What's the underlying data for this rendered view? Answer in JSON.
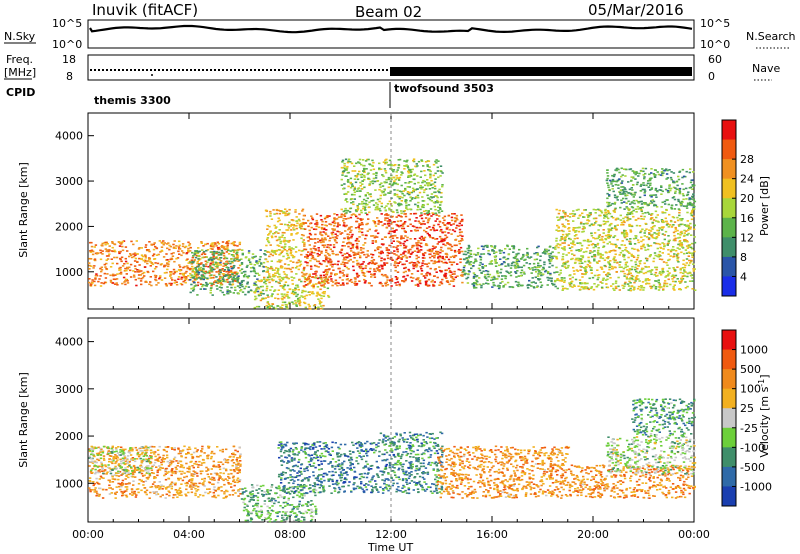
{
  "header": {
    "station": "Inuvik  (fitACF)",
    "beam": "Beam 02",
    "date": "05/Mar/2016"
  },
  "aux_panels": {
    "nsky_label": "N.Sky",
    "nsky_ticks": [
      "10^5",
      "10^0"
    ],
    "nsearch_label": "N.Search",
    "nsearch_ticks": [
      "10^5",
      "10^0"
    ],
    "freq_label_1": "Freq.",
    "freq_label_2": "[MHz]",
    "freq_ticks": [
      "18",
      "8"
    ],
    "nave_label": "Nave",
    "nave_ticks": [
      "60",
      "0"
    ],
    "cpid_label": "CPID",
    "cpid_segments": [
      {
        "name": "themis 3300",
        "start_hour": 0,
        "end_hour": 12
      },
      {
        "name": "twofsound 3503",
        "start_hour": 12,
        "end_hour": 24
      }
    ]
  },
  "chart_data": [
    {
      "type": "heatmap",
      "panel": "power",
      "ylabel": "Slant Range [km]",
      "xlabel": "Time UT",
      "xlim_hours": [
        0,
        24
      ],
      "ylim_km": [
        180,
        4500
      ],
      "yticks": [
        "1000",
        "2000",
        "3000",
        "4000"
      ],
      "xticks": [
        "00:00",
        "04:00",
        "08:00",
        "12:00",
        "16:00",
        "20:00",
        "00:00"
      ],
      "colorbar": {
        "label": "Power [dB]",
        "ticks": [
          "4",
          "8",
          "12",
          "16",
          "20",
          "24",
          "28"
        ],
        "colors": [
          "#1a2ee8",
          "#2a55a8",
          "#3f8e6a",
          "#5cb34a",
          "#a8d63a",
          "#f0c020",
          "#f09020",
          "#f05a10",
          "#e81010"
        ]
      },
      "regions": [
        {
          "t0": 0.0,
          "t1": 6.0,
          "r_low": 700,
          "r_high": 1700,
          "level": 0.75
        },
        {
          "t0": 4.0,
          "t1": 7.0,
          "r_low": 500,
          "r_high": 1500,
          "level": 0.35
        },
        {
          "t0": 6.5,
          "t1": 9.5,
          "r_low": 200,
          "r_high": 900,
          "level": 0.55
        },
        {
          "t0": 7.0,
          "t1": 8.5,
          "r_low": 900,
          "r_high": 2400,
          "level": 0.6
        },
        {
          "t0": 8.5,
          "t1": 11.5,
          "r_low": 700,
          "r_high": 2300,
          "level": 0.8
        },
        {
          "t0": 11.5,
          "t1": 14.8,
          "r_low": 700,
          "r_high": 2300,
          "level": 0.85
        },
        {
          "t0": 10.0,
          "t1": 14.0,
          "r_low": 2300,
          "r_high": 3500,
          "level": 0.45
        },
        {
          "t0": 14.8,
          "t1": 18.5,
          "r_low": 650,
          "r_high": 1600,
          "level": 0.35
        },
        {
          "t0": 18.5,
          "t1": 24.0,
          "r_low": 600,
          "r_high": 2400,
          "level": 0.55
        },
        {
          "t0": 20.5,
          "t1": 24.0,
          "r_low": 2400,
          "r_high": 3300,
          "level": 0.35
        }
      ]
    },
    {
      "type": "heatmap",
      "panel": "velocity",
      "ylabel": "Slant Range [km]",
      "xlabel": "Time UT",
      "xlim_hours": [
        0,
        24
      ],
      "ylim_km": [
        180,
        4500
      ],
      "yticks": [
        "1000",
        "2000",
        "3000",
        "4000"
      ],
      "xticks": [
        "00:00",
        "04:00",
        "08:00",
        "12:00",
        "16:00",
        "20:00",
        "00:00"
      ],
      "colorbar": {
        "label": "Velocity  [m s",
        "label_sup": "-1",
        "label_end": "]",
        "ticks": [
          "1000",
          "500",
          "100",
          "25",
          "-25",
          "-100",
          "-500",
          "-1000"
        ],
        "colors": [
          "#1a3fb0",
          "#2f6aa8",
          "#3f8e6a",
          "#6ccf3a",
          "#c8c8c8",
          "#f2b020",
          "#f08a1c",
          "#f05a10",
          "#e81010"
        ]
      },
      "regions": [
        {
          "t0": 0.0,
          "t1": 6.0,
          "r_low": 700,
          "r_high": 1800,
          "level": 0.68
        },
        {
          "t0": 0.0,
          "t1": 2.5,
          "r_low": 1200,
          "r_high": 1800,
          "level": 0.45
        },
        {
          "t0": 6.0,
          "t1": 9.0,
          "r_low": 200,
          "r_high": 1000,
          "level": 0.35
        },
        {
          "t0": 7.5,
          "t1": 11.5,
          "r_low": 800,
          "r_high": 1900,
          "level": 0.22
        },
        {
          "t0": 11.5,
          "t1": 14.0,
          "r_low": 800,
          "r_high": 2100,
          "level": 0.25
        },
        {
          "t0": 13.8,
          "t1": 19.0,
          "r_low": 700,
          "r_high": 1800,
          "level": 0.7
        },
        {
          "t0": 19.0,
          "t1": 24.0,
          "r_low": 700,
          "r_high": 1400,
          "level": 0.7
        },
        {
          "t0": 20.5,
          "t1": 24.0,
          "r_low": 1200,
          "r_high": 2000,
          "level": 0.45
        },
        {
          "t0": 21.5,
          "t1": 24.0,
          "r_low": 2000,
          "r_high": 2800,
          "level": 0.3
        }
      ]
    }
  ]
}
